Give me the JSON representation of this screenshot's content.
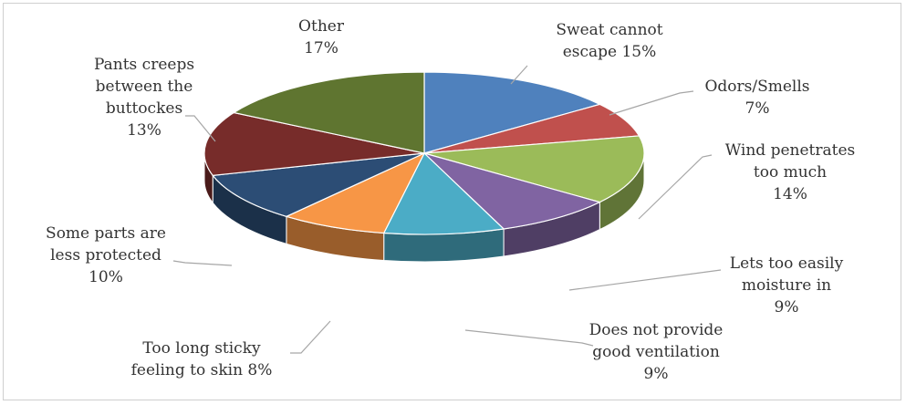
{
  "chart_data": {
    "type": "pie",
    "style": "3d-exploded-none",
    "title": "",
    "legend": "none",
    "slices": [
      {
        "id": "sweat",
        "lines": [
          "Sweat cannot",
          "escape 15%"
        ],
        "value": 15,
        "color": "#4f81bd"
      },
      {
        "id": "odors",
        "lines": [
          "Odors/Smells",
          "7%"
        ],
        "value": 7,
        "color": "#c0504d"
      },
      {
        "id": "wind",
        "lines": [
          "Wind penetrates",
          "too much",
          "14%"
        ],
        "value": 14,
        "color": "#9bbb59"
      },
      {
        "id": "moisture",
        "lines": [
          "Lets too easily",
          "moisture in",
          "9%"
        ],
        "value": 9,
        "color": "#8064a2"
      },
      {
        "id": "ventilation",
        "lines": [
          "Does not provide",
          "good ventilation",
          "9%"
        ],
        "value": 9,
        "color": "#4bacc6"
      },
      {
        "id": "sticky",
        "lines": [
          "Too      long      sticky",
          "feeling to skin 8%"
        ],
        "value": 8,
        "color": "#f79646"
      },
      {
        "id": "less",
        "lines": [
          "Some parts are",
          "less protected",
          "10%"
        ],
        "value": 10,
        "color": "#2c4d75"
      },
      {
        "id": "pants",
        "lines": [
          "Pants creeps",
          "between the",
          "buttockes",
          "13%"
        ],
        "value": 13,
        "color": "#772c2a"
      },
      {
        "id": "other",
        "lines": [
          "Other",
          "17%"
        ],
        "value": 17,
        "color": "#5f7530"
      }
    ]
  }
}
